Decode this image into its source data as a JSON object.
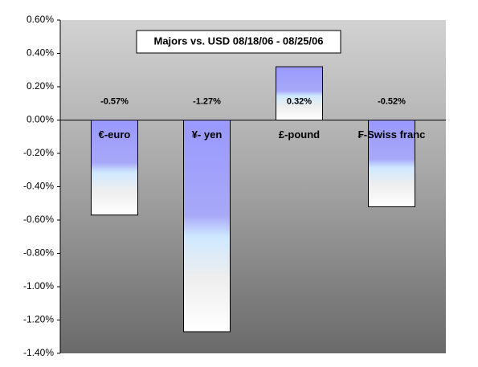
{
  "chart_data": {
    "type": "bar",
    "title": "Majors vs. USD 08/18/06 - 08/25/06",
    "categories": [
      "€-euro",
      "¥- yen",
      "£-pound",
      "₣-Swiss franc"
    ],
    "values": [
      -0.57,
      -1.27,
      0.32,
      -0.52
    ],
    "value_labels": [
      "-0.57%",
      "-1.27%",
      "0.32%",
      "-0.52%"
    ],
    "color": "#9999ff",
    "ylim": [
      -1.4,
      0.6
    ],
    "yticks": [
      {
        "value": -1.4,
        "label": "-1.40%"
      },
      {
        "value": -1.2,
        "label": "-1.20%"
      },
      {
        "value": -1.0,
        "label": "-1.00%"
      },
      {
        "value": -0.8,
        "label": "-0.80%"
      },
      {
        "value": -0.6,
        "label": "-0.60%"
      },
      {
        "value": -0.4,
        "label": "-0.40%"
      },
      {
        "value": -0.2,
        "label": "-0.20%"
      },
      {
        "value": 0.0,
        "label": "0.00%"
      },
      {
        "value": 0.2,
        "label": "0.20%"
      },
      {
        "value": 0.4,
        "label": "0.40%"
      },
      {
        "value": 0.6,
        "label": "0.60%"
      }
    ]
  }
}
